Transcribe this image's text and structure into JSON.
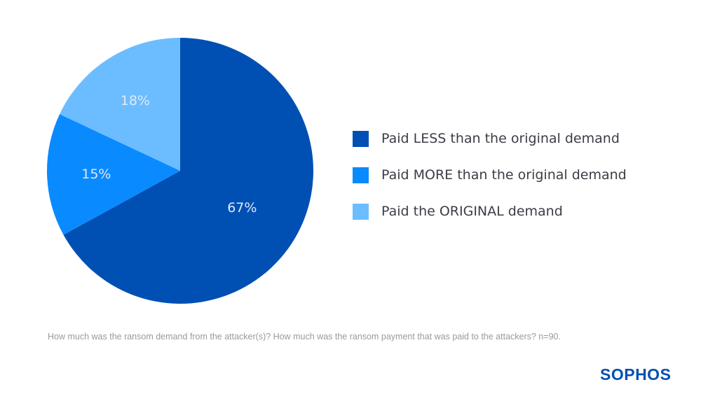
{
  "chart_data": {
    "type": "pie",
    "start": "top",
    "direction": "clockwise",
    "slices": [
      {
        "label": "Paid LESS than the original demand",
        "value": 67,
        "display": "67%",
        "color": "#0050b4"
      },
      {
        "label": "Paid MORE than the original demand",
        "value": 15,
        "display": "15%",
        "color": "#0a8aff"
      },
      {
        "label": "Paid the ORIGINAL demand",
        "value": 18,
        "display": "18%",
        "color": "#6bbdff"
      }
    ],
    "legend_placement": "right"
  },
  "caption": "How much was the ransom demand from the attacker(s)? How much was the ransom payment that was paid to the attackers? n=90.",
  "logo": "SOPHOS"
}
